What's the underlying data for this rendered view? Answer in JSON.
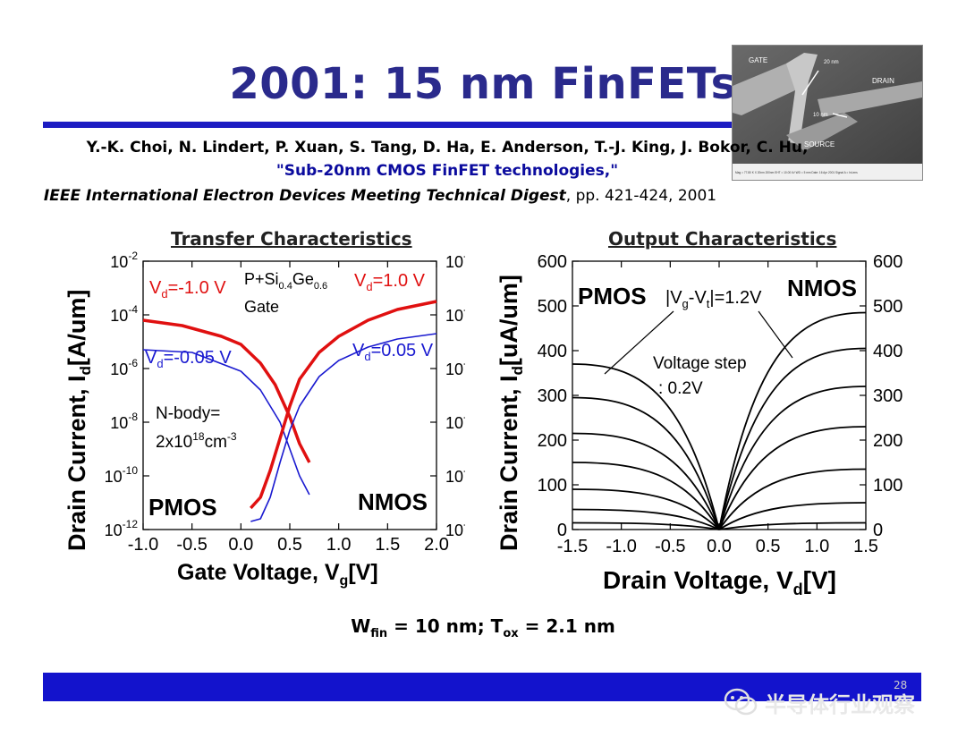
{
  "slide": {
    "title": "2001: 15 nm FinFETs",
    "reference": {
      "authors": "Y.-K. Choi, N. Lindert, P. Xuan, S. Tang, D. Ha, E. Anderson, T.-J. King, J. Bokor, C. Hu,",
      "paper_title": "\"Sub-20nm CMOS FinFET technologies,\"",
      "venue": "IEEE International Electron Devices Meeting Technical Digest",
      "pages": ", pp. 421-424, 2001"
    },
    "device_params": "W_fin = 10 nm; T_ox = 2.1 nm",
    "page_number": "28",
    "watermark": "半导体行业观察",
    "sem_image": {
      "labels": [
        "GATE",
        "DRAIN",
        "SOURCE",
        "20 nm",
        "10 nm"
      ],
      "footer": "Mag = 77.80 K X   20nm   200nm   EHT = 10.00 kV   WD = 5 mm   Date: 16 Apr 2001   Signal A = InLens"
    },
    "colors": {
      "title": "#2a2a8c",
      "rule": "#1c1cc2",
      "ref_link": "#0b0b9e",
      "red_curve": "#e01010",
      "blue_curve": "#1a1ad0"
    }
  },
  "chart_data": [
    {
      "type": "line",
      "title": "Transfer Characteristics",
      "xlabel": "Gate Voltage, V",
      "xlabel_sub": "g",
      "xlabel_unit": "[V]",
      "ylabel": "Drain Current, I",
      "ylabel_sub": "d",
      "ylabel_unit": "[A/um]",
      "xlim": [
        -1.0,
        2.0
      ],
      "xticks": [
        "-1.0",
        "-0.5",
        "0.0",
        "0.5",
        "1.0",
        "1.5",
        "2.0"
      ],
      "yscale": "log",
      "ylim_exp": [
        -12,
        -2
      ],
      "yticks_exp": [
        "-2",
        "-4",
        "-6",
        "-8",
        "-10",
        "-12"
      ],
      "series": [
        {
          "name": "PMOS Vd=-1.0 V",
          "color": "#e01010",
          "x": [
            -1.0,
            -0.6,
            -0.2,
            0.0,
            0.2,
            0.35,
            0.5,
            0.6,
            0.7
          ],
          "y_exp": [
            -4.2,
            -4.4,
            -4.8,
            -5.1,
            -5.8,
            -6.6,
            -7.8,
            -8.8,
            -9.5
          ]
        },
        {
          "name": "PMOS Vd=-0.05 V",
          "color": "#1a1ad0",
          "x": [
            -1.0,
            -0.5,
            0.0,
            0.2,
            0.4,
            0.5,
            0.6,
            0.7
          ],
          "y_exp": [
            -5.3,
            -5.4,
            -6.1,
            -6.8,
            -8.0,
            -9.0,
            -10.0,
            -10.7
          ]
        },
        {
          "name": "NMOS Vd=1.0 V",
          "color": "#e01010",
          "x": [
            0.1,
            0.2,
            0.3,
            0.4,
            0.5,
            0.6,
            0.8,
            1.0,
            1.3,
            1.6,
            2.0
          ],
          "y_exp": [
            -11.2,
            -10.8,
            -9.8,
            -8.6,
            -7.4,
            -6.4,
            -5.4,
            -4.8,
            -4.2,
            -3.8,
            -3.5
          ]
        },
        {
          "name": "NMOS Vd=0.05 V",
          "color": "#1a1ad0",
          "x": [
            0.1,
            0.2,
            0.3,
            0.4,
            0.5,
            0.6,
            0.8,
            1.0,
            1.3,
            1.6,
            2.0
          ],
          "y_exp": [
            -11.7,
            -11.6,
            -10.8,
            -9.5,
            -8.3,
            -7.4,
            -6.3,
            -5.7,
            -5.2,
            -4.9,
            -4.7
          ]
        }
      ],
      "annotations": {
        "vd_red_left": "V",
        "vd_red_left_sub": "d",
        "vd_red_left_val": "=-1.0 V",
        "vd_red_right": "V",
        "vd_red_right_sub": "d",
        "vd_red_right_val": "=1.0 V",
        "vd_blue_left": "V",
        "vd_blue_left_sub": "d",
        "vd_blue_left_val": "=-0.05 V",
        "vd_blue_right": "V",
        "vd_blue_right_sub": "d",
        "vd_blue_right_val": "=0.05 V",
        "gate1": "P+Si",
        "gate1_sub1": "0.4",
        "gate1_b": "Ge",
        "gate1_sub2": "0.6",
        "gate2": "Gate",
        "nbody1": "N-body=",
        "nbody2": "2x10",
        "nbody2_sup": "18",
        "nbody2_b": "cm",
        "nbody2_sup2": "-3",
        "pmos": "PMOS",
        "nmos": "NMOS"
      }
    },
    {
      "type": "line",
      "title": "Output Characteristics",
      "xlabel": "Drain Voltage, V",
      "xlabel_sub": "d",
      "xlabel_unit": "[V]",
      "ylabel": "Drain Current, I",
      "ylabel_sub": "d",
      "ylabel_unit": "[uA/um]",
      "xlim": [
        -1.5,
        1.5
      ],
      "xticks": [
        "-1.5",
        "-1.0",
        "-0.5",
        "0.0",
        "0.5",
        "1.0",
        "1.5"
      ],
      "ylim": [
        0,
        600
      ],
      "yticks": [
        "0",
        "100",
        "200",
        "300",
        "400",
        "500",
        "600"
      ],
      "pmos_saturation": [
        370,
        295,
        215,
        150,
        90,
        45,
        15
      ],
      "nmos_saturation": [
        485,
        405,
        320,
        230,
        135,
        60,
        15
      ],
      "annotations": {
        "pmos": "PMOS",
        "nmos": "NMOS",
        "vg_label": "|V",
        "vg_sub": "g",
        "vg_mid": "-V",
        "vt_sub": "t",
        "vg_end": "|=1.2V",
        "step1": "Voltage step",
        "step2": ": 0.2V"
      }
    }
  ]
}
